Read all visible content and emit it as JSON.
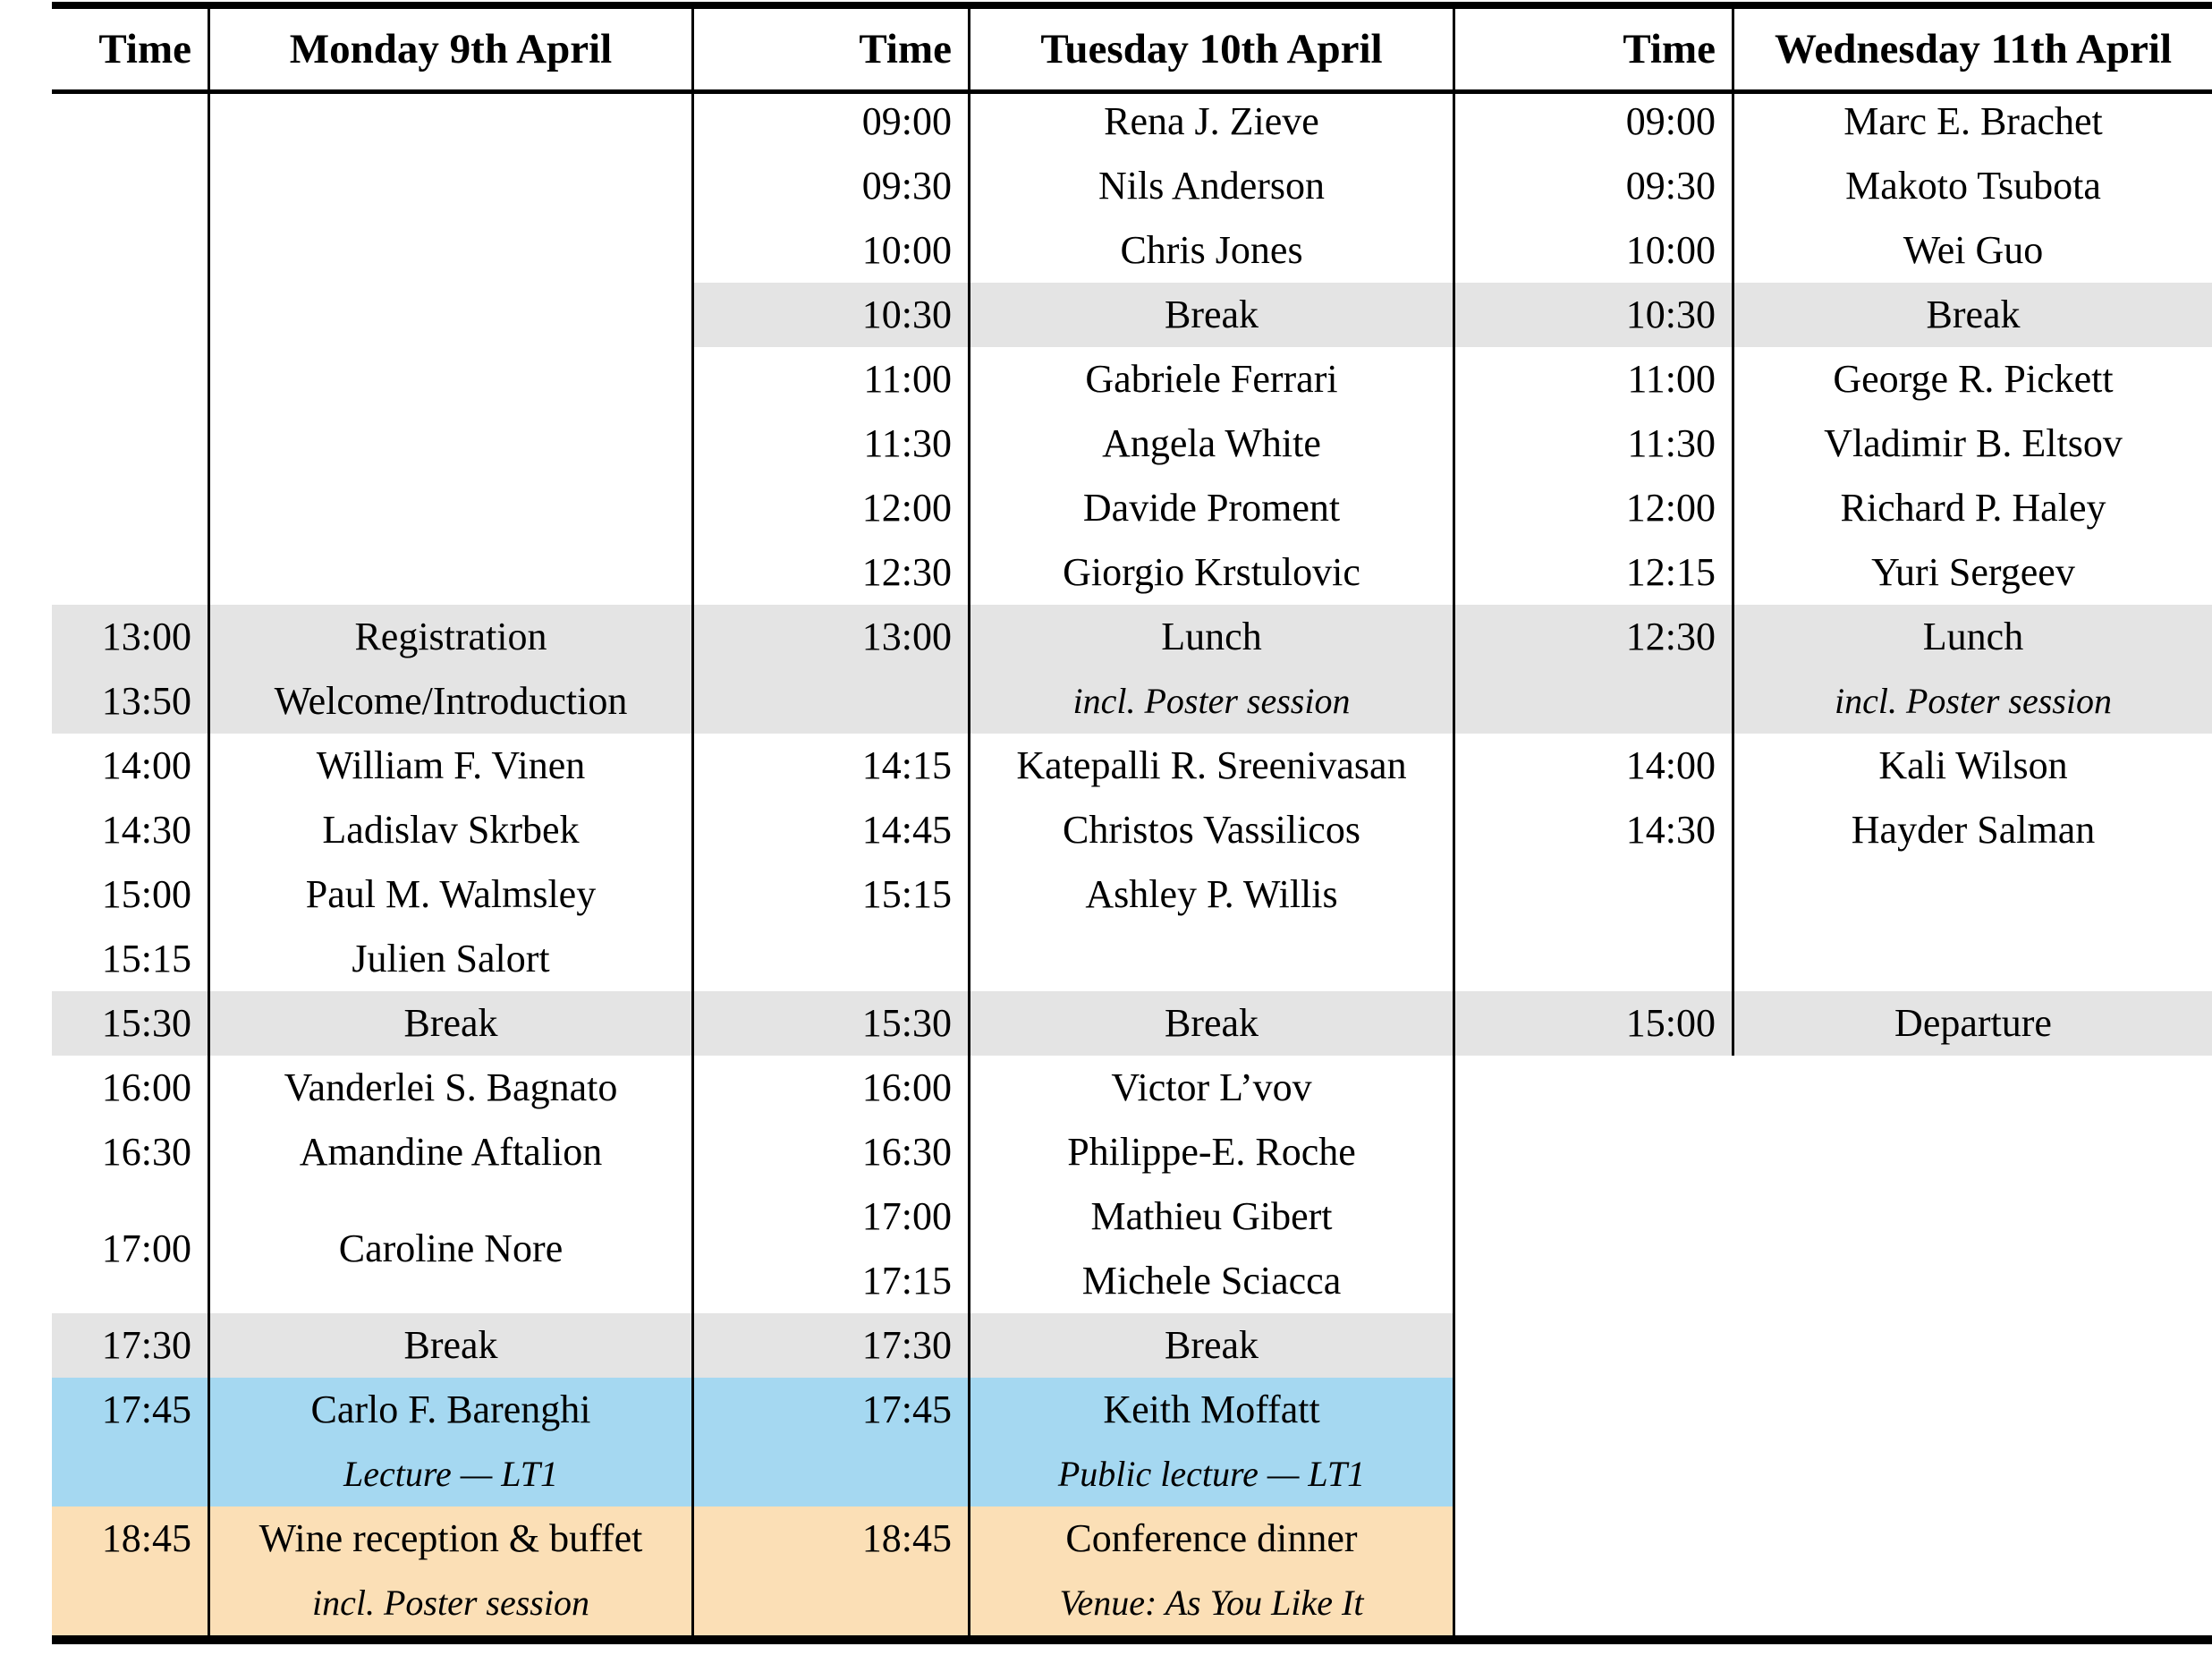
{
  "schedule": {
    "colors": {
      "break_bg": "#e4e4e4",
      "lecture_bg": "#a5d8f1",
      "social_bg": "#fbdfb6",
      "rule": "#000000"
    },
    "days": [
      {
        "time_header": "Time",
        "day_header": "Monday 9th April",
        "cells": [
          {
            "row": 2,
            "span": 8,
            "entries": []
          },
          {
            "row": 10,
            "bg": "break",
            "entries": [
              {
                "time": "13:00",
                "label": "Registration"
              },
              {
                "time": "13:50",
                "label": "Welcome/Introduction"
              }
            ]
          },
          {
            "row": 11,
            "entries": [
              {
                "time": "14:00",
                "label": "William F. Vinen"
              }
            ]
          },
          {
            "row": 12,
            "entries": [
              {
                "time": "14:30",
                "label": "Ladislav Skrbek"
              }
            ]
          },
          {
            "row": 13,
            "entries": [
              {
                "time": "15:00",
                "label": "Paul M. Walmsley"
              }
            ]
          },
          {
            "row": 14,
            "entries": [
              {
                "time": "15:15",
                "label": "Julien Salort"
              }
            ]
          },
          {
            "row": 15,
            "bg": "break",
            "entries": [
              {
                "time": "15:30",
                "label": "Break"
              }
            ]
          },
          {
            "row": 16,
            "entries": [
              {
                "time": "16:00",
                "label": "Vanderlei S. Bagnato"
              }
            ]
          },
          {
            "row": 17,
            "entries": [
              {
                "time": "16:30",
                "label": "Amandine Aftalion"
              }
            ]
          },
          {
            "row": 18,
            "span": 2,
            "entries": [
              {
                "time": "17:00",
                "label": "Caroline Nore"
              }
            ]
          },
          {
            "row": 20,
            "bg": "break",
            "entries": [
              {
                "time": "17:30",
                "label": "Break"
              }
            ]
          },
          {
            "row": 21,
            "bg": "lecture",
            "entries": [
              {
                "time": "17:45",
                "label": "Carlo F. Barenghi"
              },
              {
                "time": "",
                "label": "Lecture — LT1",
                "italic": true
              }
            ]
          },
          {
            "row": 22,
            "bg": "social",
            "entries": [
              {
                "time": "18:45",
                "label": "Wine reception & buffet"
              },
              {
                "time": "",
                "label": "incl. Poster session",
                "italic": true
              }
            ]
          }
        ]
      },
      {
        "time_header": "Time",
        "day_header": "Tuesday 10th April",
        "cells": [
          {
            "row": 2,
            "entries": [
              {
                "time": "09:00",
                "label": "Rena J. Zieve"
              }
            ]
          },
          {
            "row": 3,
            "entries": [
              {
                "time": "09:30",
                "label": "Nils Anderson"
              }
            ]
          },
          {
            "row": 4,
            "entries": [
              {
                "time": "10:00",
                "label": "Chris Jones"
              }
            ]
          },
          {
            "row": 5,
            "bg": "break",
            "entries": [
              {
                "time": "10:30",
                "label": "Break"
              }
            ]
          },
          {
            "row": 6,
            "entries": [
              {
                "time": "11:00",
                "label": "Gabriele Ferrari"
              }
            ]
          },
          {
            "row": 7,
            "entries": [
              {
                "time": "11:30",
                "label": "Angela White"
              }
            ]
          },
          {
            "row": 8,
            "entries": [
              {
                "time": "12:00",
                "label": "Davide Proment"
              }
            ]
          },
          {
            "row": 9,
            "entries": [
              {
                "time": "12:30",
                "label": "Giorgio Krstulovic"
              }
            ]
          },
          {
            "row": 10,
            "bg": "break",
            "entries": [
              {
                "time": "13:00",
                "label": "Lunch"
              },
              {
                "time": "",
                "label": "incl. Poster session",
                "italic": true
              }
            ]
          },
          {
            "row": 11,
            "entries": [
              {
                "time": "14:15",
                "label": "Katepalli R. Sreenivasan"
              }
            ]
          },
          {
            "row": 12,
            "entries": [
              {
                "time": "14:45",
                "label": "Christos Vassilicos"
              }
            ]
          },
          {
            "row": 13,
            "entries": [
              {
                "time": "15:15",
                "label": "Ashley P. Willis"
              }
            ]
          },
          {
            "row": 14,
            "entries": []
          },
          {
            "row": 15,
            "bg": "break",
            "entries": [
              {
                "time": "15:30",
                "label": "Break"
              }
            ]
          },
          {
            "row": 16,
            "entries": [
              {
                "time": "16:00",
                "label": "Victor L’vov"
              }
            ]
          },
          {
            "row": 17,
            "entries": [
              {
                "time": "16:30",
                "label": "Philippe-E. Roche"
              }
            ]
          },
          {
            "row": 18,
            "entries": [
              {
                "time": "17:00",
                "label": "Mathieu Gibert"
              }
            ]
          },
          {
            "row": 19,
            "entries": [
              {
                "time": "17:15",
                "label": "Michele Sciacca"
              }
            ]
          },
          {
            "row": 20,
            "bg": "break",
            "entries": [
              {
                "time": "17:30",
                "label": "Break"
              }
            ]
          },
          {
            "row": 21,
            "bg": "lecture",
            "entries": [
              {
                "time": "17:45",
                "label": "Keith Moffatt"
              },
              {
                "time": "",
                "label": "Public lecture — LT1",
                "italic": true
              }
            ]
          },
          {
            "row": 22,
            "bg": "social",
            "entries": [
              {
                "time": "18:45",
                "label": "Conference dinner"
              },
              {
                "time": "",
                "label": "Venue: As You Like It",
                "italic": true
              }
            ]
          }
        ]
      },
      {
        "time_header": "Time",
        "day_header": "Wednesday 11th April",
        "cells": [
          {
            "row": 2,
            "entries": [
              {
                "time": "09:00",
                "label": "Marc E. Brachet"
              }
            ]
          },
          {
            "row": 3,
            "entries": [
              {
                "time": "09:30",
                "label": "Makoto Tsubota"
              }
            ]
          },
          {
            "row": 4,
            "entries": [
              {
                "time": "10:00",
                "label": "Wei Guo"
              }
            ]
          },
          {
            "row": 5,
            "bg": "break",
            "entries": [
              {
                "time": "10:30",
                "label": "Break"
              }
            ]
          },
          {
            "row": 6,
            "entries": [
              {
                "time": "11:00",
                "label": "George R. Pickett"
              }
            ]
          },
          {
            "row": 7,
            "entries": [
              {
                "time": "11:30",
                "label": "Vladimir B. Eltsov"
              }
            ]
          },
          {
            "row": 8,
            "entries": [
              {
                "time": "12:00",
                "label": "Richard P. Haley"
              }
            ]
          },
          {
            "row": 9,
            "entries": [
              {
                "time": "12:15",
                "label": "Yuri Sergeev"
              }
            ]
          },
          {
            "row": 10,
            "bg": "break",
            "entries": [
              {
                "time": "12:30",
                "label": "Lunch"
              },
              {
                "time": "",
                "label": "incl. Poster session",
                "italic": true
              }
            ]
          },
          {
            "row": 11,
            "entries": [
              {
                "time": "14:00",
                "label": "Kali Wilson"
              }
            ]
          },
          {
            "row": 12,
            "entries": [
              {
                "time": "14:30",
                "label": "Hayder Salman"
              }
            ]
          },
          {
            "row": 13,
            "span": 2,
            "entries": []
          },
          {
            "row": 15,
            "bg": "break",
            "entries": [
              {
                "time": "15:00",
                "label": "Departure"
              }
            ]
          }
        ]
      }
    ]
  }
}
